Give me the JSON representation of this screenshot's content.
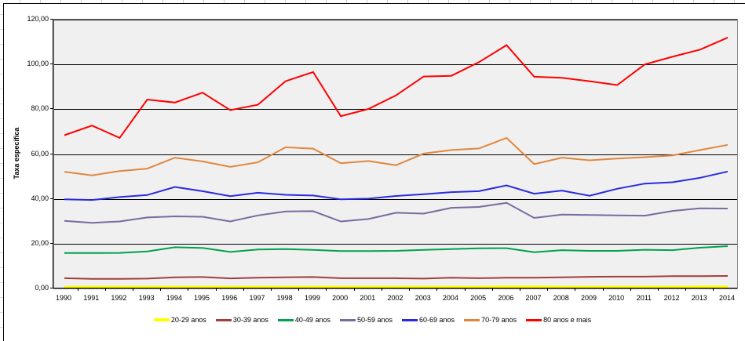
{
  "chart_data": {
    "type": "line",
    "title": "",
    "xlabel": "",
    "ylabel": "Taxa específica",
    "ylim": [
      0,
      120
    ],
    "ytick_step": 20,
    "ytick_labels": [
      "0,00",
      "20,00",
      "40,00",
      "60,00",
      "80,00",
      "100,00",
      "120,00"
    ],
    "grid": true,
    "plot_bg": "#F0F0F0",
    "legend_position": "bottom",
    "categories": [
      "1990",
      "1991",
      "1992",
      "1993",
      "1994",
      "1995",
      "1996",
      "1997",
      "1998",
      "1999",
      "2000",
      "2001",
      "2002",
      "2003",
      "2004",
      "2005",
      "2006",
      "2007",
      "2008",
      "2009",
      "2010",
      "2011",
      "2012",
      "2013",
      "2014"
    ],
    "series": [
      {
        "name": "20-29 anos",
        "color": "#FFFF00",
        "line_width": 4,
        "values": [
          0.5,
          0.5,
          0.5,
          0.5,
          0.5,
          0.5,
          0.5,
          0.5,
          0.5,
          0.5,
          0.5,
          0.5,
          0.5,
          0.5,
          0.5,
          0.5,
          0.6,
          0.6,
          0.5,
          0.5,
          0.5,
          0.5,
          0.5,
          0.6,
          0.6
        ]
      },
      {
        "name": "30-39 anos",
        "color": "#A43D3D",
        "line_width": 2,
        "values": [
          4.6,
          4.3,
          4.3,
          4.4,
          5.0,
          5.1,
          4.5,
          4.8,
          5.0,
          5.1,
          4.6,
          4.6,
          4.6,
          4.4,
          4.8,
          4.6,
          4.8,
          4.8,
          5.0,
          5.2,
          5.3,
          5.3,
          5.5,
          5.5,
          5.6
        ]
      },
      {
        "name": "40-49 anos",
        "color": "#00A14F",
        "line_width": 2,
        "values": [
          15.8,
          15.8,
          15.9,
          16.5,
          18.4,
          18.1,
          16.3,
          17.4,
          17.6,
          17.2,
          16.7,
          16.7,
          16.8,
          17.2,
          17.6,
          17.9,
          18.0,
          16.2,
          17.1,
          16.8,
          16.8,
          17.3,
          17.1,
          18.2,
          18.9
        ]
      },
      {
        "name": "50-59 anos",
        "color": "#7A6A9F",
        "line_width": 2,
        "values": [
          30.2,
          29.3,
          29.9,
          31.7,
          32.2,
          32.0,
          29.9,
          32.6,
          34.4,
          34.5,
          29.9,
          31.0,
          33.8,
          33.4,
          36.0,
          36.4,
          38.2,
          31.5,
          33.0,
          32.8,
          32.6,
          32.5,
          34.6,
          35.8,
          35.7
        ]
      },
      {
        "name": "60-69 anos",
        "color": "#2A2AE0",
        "line_width": 2,
        "values": [
          39.8,
          39.5,
          40.8,
          41.7,
          45.3,
          43.4,
          41.2,
          42.7,
          41.8,
          41.5,
          39.8,
          40.1,
          41.3,
          42.1,
          43.0,
          43.4,
          46.0,
          42.3,
          43.7,
          41.4,
          44.5,
          46.8,
          47.4,
          49.4,
          52.2
        ]
      },
      {
        "name": "70-79 anos",
        "color": "#E0873E",
        "line_width": 2,
        "values": [
          52.1,
          50.5,
          52.4,
          53.5,
          58.4,
          56.7,
          54.3,
          56.3,
          63.0,
          62.4,
          55.9,
          56.9,
          55.0,
          60.2,
          61.8,
          62.5,
          67.2,
          55.5,
          58.4,
          57.2,
          58.0,
          58.6,
          59.4,
          61.8,
          64.1
        ]
      },
      {
        "name": "80 anos e mais",
        "color": "#FF0000",
        "line_width": 2,
        "values": [
          68.4,
          72.7,
          67.2,
          84.3,
          83.0,
          87.4,
          79.6,
          82.0,
          92.5,
          96.6,
          76.9,
          80.1,
          86.2,
          94.6,
          94.9,
          101.0,
          108.6,
          94.5,
          94.0,
          92.5,
          90.8,
          100.0,
          103.4,
          106.6,
          112.0
        ]
      }
    ]
  }
}
